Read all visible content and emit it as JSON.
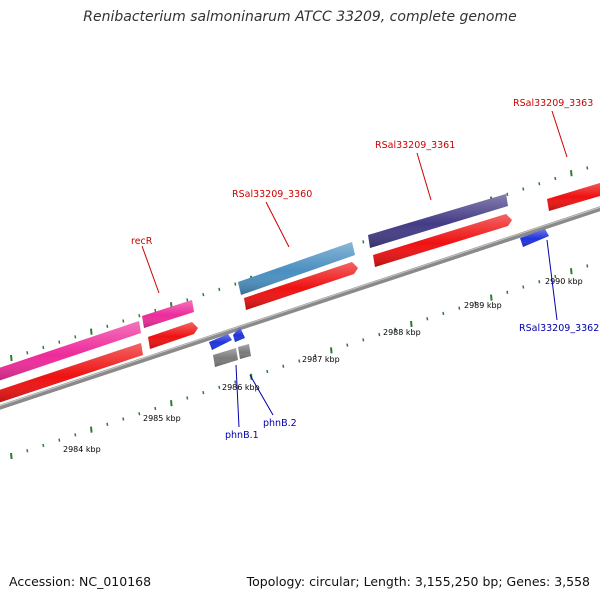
{
  "title": "Renibacterium salmoninarum ATCC 33209, complete genome",
  "footer": {
    "accession": "Accession: NC_010168",
    "topology": "Topology: circular; Length: 3,155,250 bp; Genes: 3,558"
  },
  "colors": {
    "backbone": "#888888",
    "tick": "#2e7d2e",
    "cds": "#ee1111",
    "pink_gene": "#ee2a9a",
    "steel_gene": "#4a8fc0",
    "indigo_gene": "#433b85",
    "blue_gene": "#1f33dd",
    "gray_gene": "#7a7a7a",
    "label_top": "#cc0000",
    "label_bottom": "#0000aa"
  },
  "ruler_labels": [
    "2984 kbp",
    "2985 kbp",
    "2986 kbp",
    "2987 kbp",
    "2988 kbp",
    "2989 kbp",
    "2990 kbp"
  ],
  "gene_labels": {
    "recR": "recR",
    "rsal3360": "RSal33209_3360",
    "rsal3361": "RSal33209_3361",
    "rsal3363": "RSal33209_3363",
    "rsal3362": "RSal33209_3362",
    "phnB1": "phnB.1",
    "phnB2": "phnB.2"
  }
}
